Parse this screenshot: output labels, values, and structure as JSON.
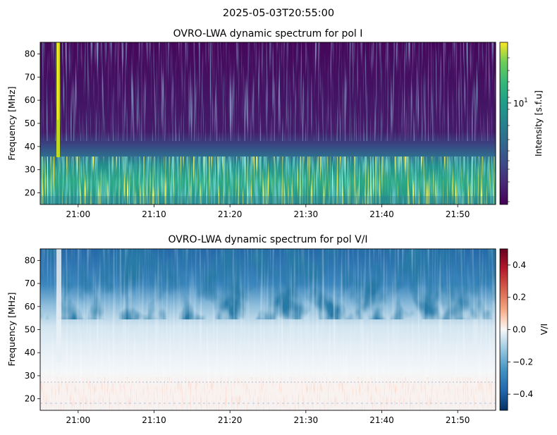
{
  "suptitle": "2025-05-03T20:55:00",
  "chart_data": [
    {
      "type": "heatmap",
      "title": "OVRO-LWA dynamic spectrum for pol I",
      "xlabel": "",
      "ylabel": "Frequency [MHz]",
      "x_ticks": [
        "21:00",
        "21:10",
        "21:20",
        "21:30",
        "21:40",
        "21:50"
      ],
      "x_tick_minutes_after_20_55": [
        5,
        15,
        25,
        35,
        45,
        55
      ],
      "x_range_minutes_after_20_55": [
        0,
        60
      ],
      "y_ticks": [
        20,
        30,
        40,
        50,
        60,
        70,
        80
      ],
      "ylim": [
        15,
        85
      ],
      "colormap": "viridis",
      "color_scale": "log",
      "colorbar": {
        "label": "Intensity [s.f.u]",
        "major_tick_label": "10",
        "major_tick_exponent": "1",
        "major_tick_value": 10
      },
      "features": {
        "burst_column_time_minutes": 2.5,
        "bright_band_mhz": [
          15,
          35
        ],
        "dim_region_mhz": [
          40,
          85
        ]
      }
    },
    {
      "type": "heatmap",
      "title": "OVRO-LWA dynamic spectrum for pol V/I",
      "xlabel": "",
      "ylabel": "Frequency [MHz]",
      "x_ticks": [
        "21:00",
        "21:10",
        "21:20",
        "21:30",
        "21:40",
        "21:50"
      ],
      "x_tick_minutes_after_20_55": [
        5,
        15,
        25,
        35,
        45,
        55
      ],
      "x_range_minutes_after_20_55": [
        0,
        60
      ],
      "y_ticks": [
        20,
        30,
        40,
        50,
        60,
        70,
        80
      ],
      "ylim": [
        15,
        85
      ],
      "colormap": "RdBu_r",
      "colorbar": {
        "label": "V/I",
        "range": [
          -0.5,
          0.5
        ],
        "tick_values": [
          -0.4,
          -0.2,
          0.0,
          0.2,
          0.4
        ],
        "tick_labels": [
          "−0.4",
          "−0.2",
          "0.0",
          "0.2",
          "0.4"
        ]
      }
    }
  ]
}
